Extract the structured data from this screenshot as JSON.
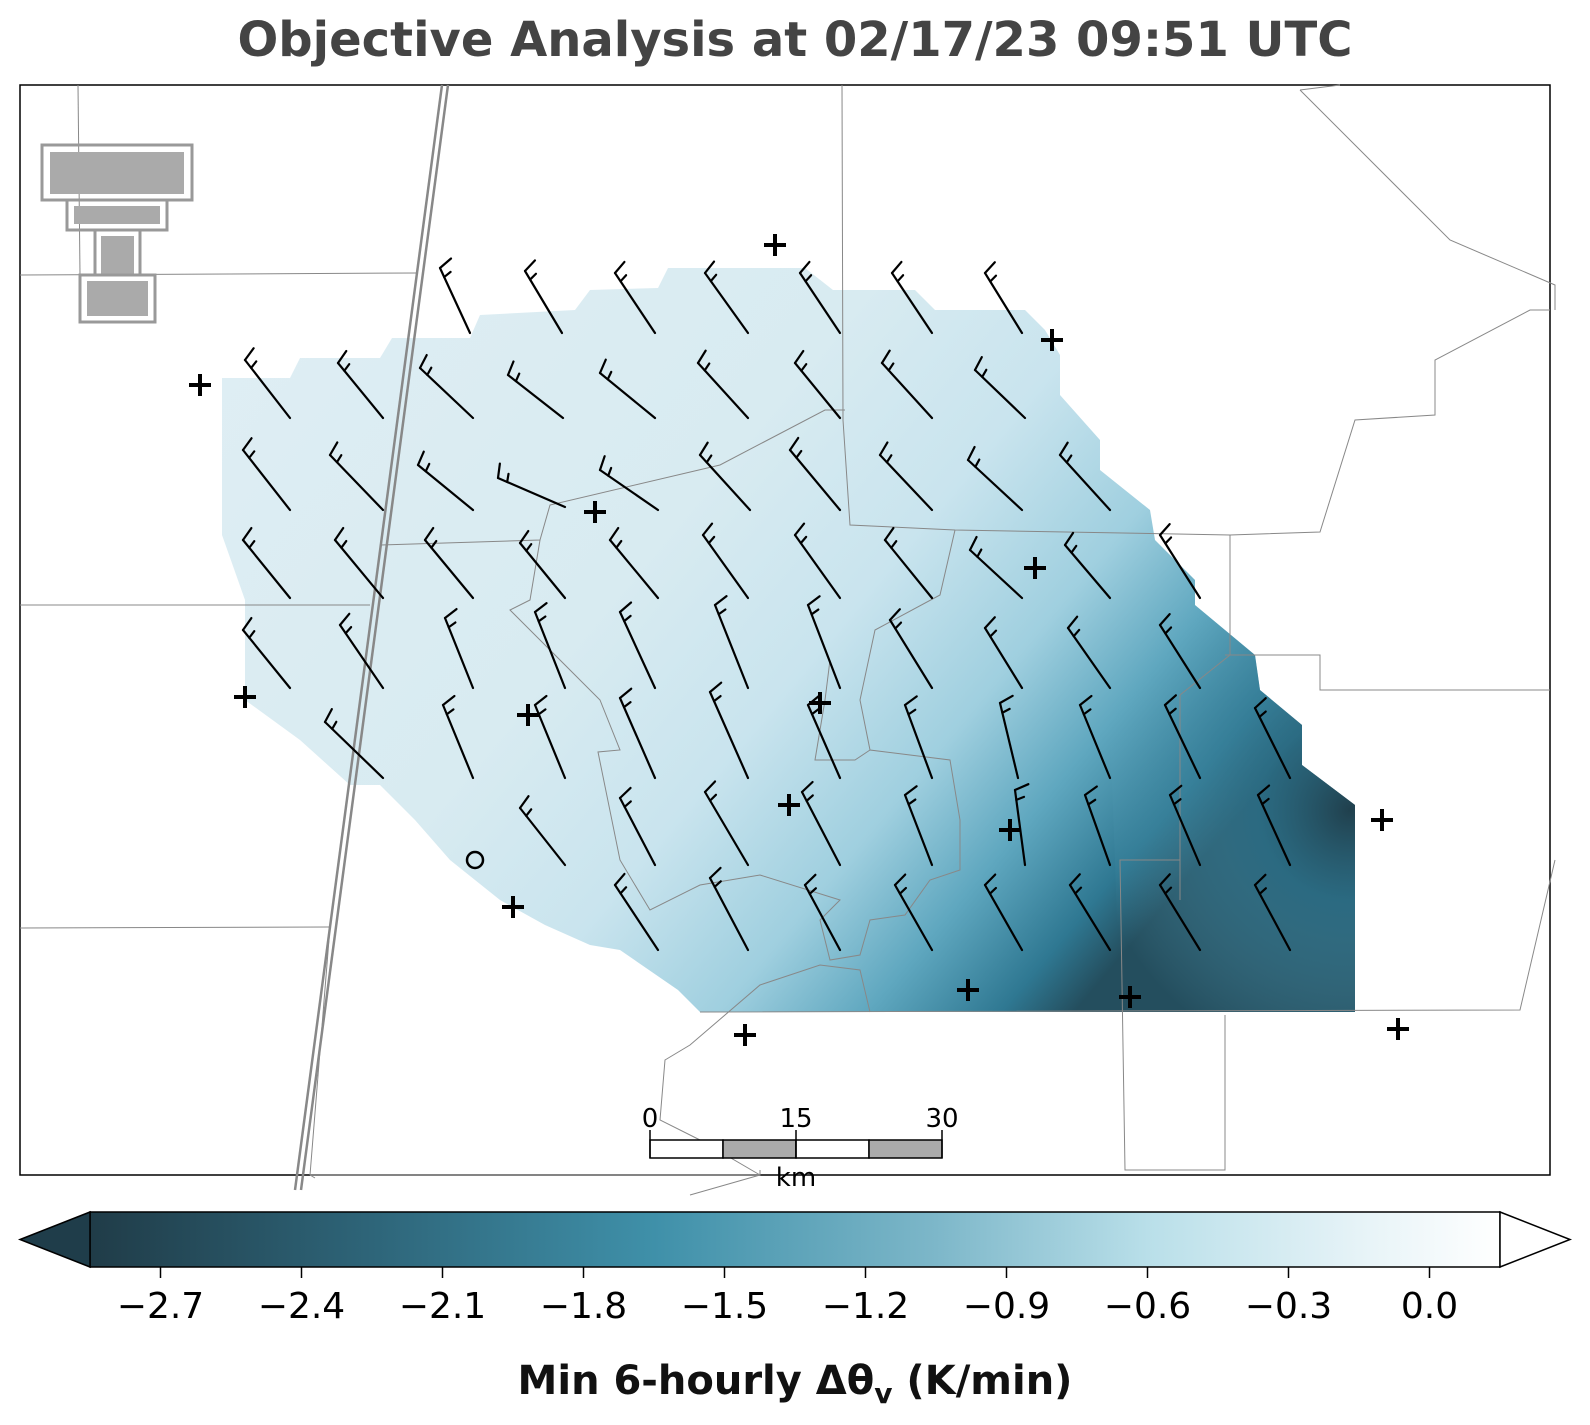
{
  "title": "Objective Analysis at 02/17/23 09:51 UTC",
  "colorbar": {
    "label_main": "Min 6-hourly Δθ",
    "label_sub": "v",
    "label_units": " (K/min)",
    "ticks": [
      "−2.7",
      "−2.4",
      "−2.1",
      "−1.8",
      "−1.5",
      "−1.2",
      "−0.9",
      "−0.6",
      "−0.3",
      "0.0"
    ],
    "tick_values": [
      -2.7,
      -2.4,
      -2.1,
      -1.8,
      -1.5,
      -1.2,
      -0.9,
      -0.6,
      -0.3,
      0.0
    ],
    "range": [
      -2.85,
      0.15
    ],
    "color_dark": "#1f3d4a",
    "color_mid": "#3f8fa8",
    "color_light": "#a9d6e3",
    "color_white": "#ffffff",
    "extend": "both"
  },
  "scale_bar": {
    "ticks": [
      "0",
      "15",
      "30"
    ],
    "units": "km"
  },
  "logo": {
    "name": "texas-tech-double-t-logo",
    "color": "#999999"
  },
  "wind_barb_color": "#000000",
  "station_marker": "+",
  "calm_marker": "o"
}
